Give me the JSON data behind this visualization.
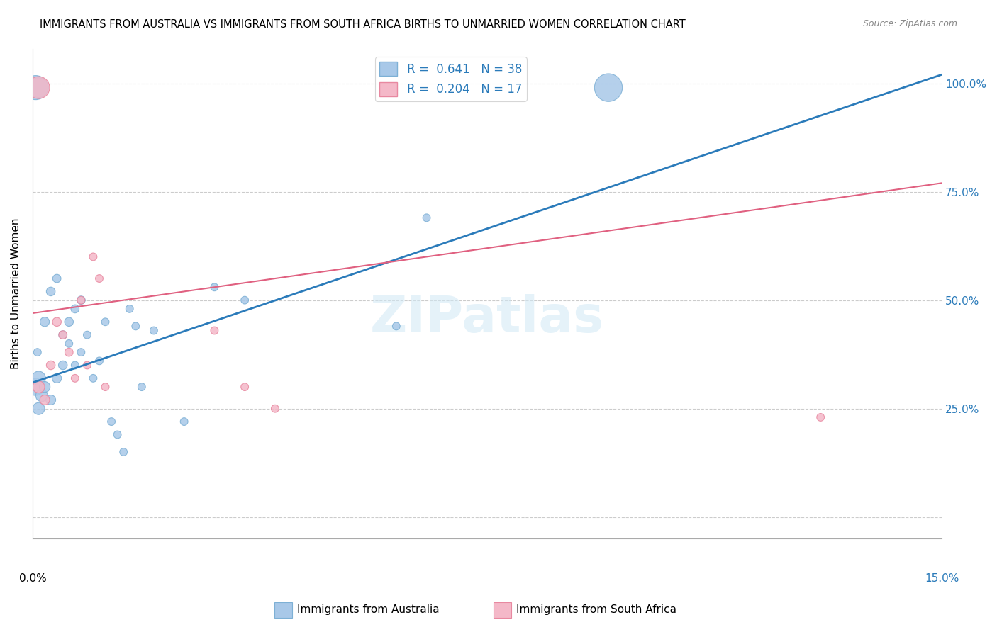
{
  "title": "IMMIGRANTS FROM AUSTRALIA VS IMMIGRANTS FROM SOUTH AFRICA BIRTHS TO UNMARRIED WOMEN CORRELATION CHART",
  "source": "Source: ZipAtlas.com",
  "ylabel": "Births to Unmarried Women",
  "yticks": [
    0.0,
    0.25,
    0.5,
    0.75,
    1.0
  ],
  "ytick_labels": [
    "",
    "25.0%",
    "50.0%",
    "75.0%",
    "100.0%"
  ],
  "xmin": 0.0,
  "xmax": 0.15,
  "ymin": -0.05,
  "ymax": 1.08,
  "legend_label1": "R =  0.641   N = 38",
  "legend_label2": "R =  0.204   N = 17",
  "legend_color1": "#a8c8e8",
  "legend_color2": "#f4b8c8",
  "legend_edge1": "#7db0d5",
  "legend_edge2": "#e888a0",
  "watermark": "ZIPatlas",
  "australia_color": "#a8c8e8",
  "australia_edge": "#7db0d5",
  "southafrica_color": "#f4b8c8",
  "southafrica_edge": "#e888a0",
  "trend_australia_color": "#2b7bba",
  "trend_southafrica_color": "#e06080",
  "blue_label_color": "#2b7bba",
  "pink_label_color": "#e06080",
  "australia_x": [
    0.0005,
    0.001,
    0.0015,
    0.002,
    0.003,
    0.004,
    0.005,
    0.006,
    0.007,
    0.008,
    0.001,
    0.002,
    0.003,
    0.004,
    0.005,
    0.006,
    0.007,
    0.008,
    0.009,
    0.01,
    0.011,
    0.012,
    0.013,
    0.014,
    0.015,
    0.016,
    0.017,
    0.018,
    0.02,
    0.025,
    0.03,
    0.035,
    0.06,
    0.065,
    0.095,
    0.0005,
    0.001,
    0.0008
  ],
  "australia_y": [
    0.3,
    0.32,
    0.28,
    0.3,
    0.27,
    0.32,
    0.35,
    0.45,
    0.48,
    0.5,
    0.25,
    0.45,
    0.52,
    0.55,
    0.42,
    0.4,
    0.35,
    0.38,
    0.42,
    0.32,
    0.36,
    0.45,
    0.22,
    0.19,
    0.15,
    0.48,
    0.44,
    0.3,
    0.43,
    0.22,
    0.53,
    0.5,
    0.44,
    0.69,
    0.99,
    0.99,
    0.99,
    0.38
  ],
  "australia_sizes": [
    300,
    200,
    150,
    120,
    100,
    90,
    80,
    80,
    70,
    70,
    150,
    90,
    80,
    70,
    70,
    60,
    60,
    60,
    60,
    60,
    60,
    60,
    60,
    60,
    60,
    60,
    60,
    60,
    60,
    60,
    60,
    60,
    60,
    60,
    800,
    600,
    400,
    60
  ],
  "southafrica_x": [
    0.001,
    0.002,
    0.003,
    0.004,
    0.005,
    0.006,
    0.007,
    0.008,
    0.009,
    0.01,
    0.011,
    0.012,
    0.03,
    0.035,
    0.04,
    0.13,
    0.001
  ],
  "southafrica_y": [
    0.3,
    0.27,
    0.35,
    0.45,
    0.42,
    0.38,
    0.32,
    0.5,
    0.35,
    0.6,
    0.55,
    0.3,
    0.43,
    0.3,
    0.25,
    0.23,
    0.99
  ],
  "southafrica_sizes": [
    150,
    100,
    80,
    80,
    70,
    70,
    60,
    60,
    60,
    60,
    60,
    60,
    60,
    60,
    60,
    60,
    500
  ],
  "trend_au_x0": 0.0,
  "trend_au_x1": 0.15,
  "trend_au_y0": 0.31,
  "trend_au_y1": 1.02,
  "trend_sa_x0": 0.0,
  "trend_sa_x1": 0.15,
  "trend_sa_y0": 0.47,
  "trend_sa_y1": 0.77
}
